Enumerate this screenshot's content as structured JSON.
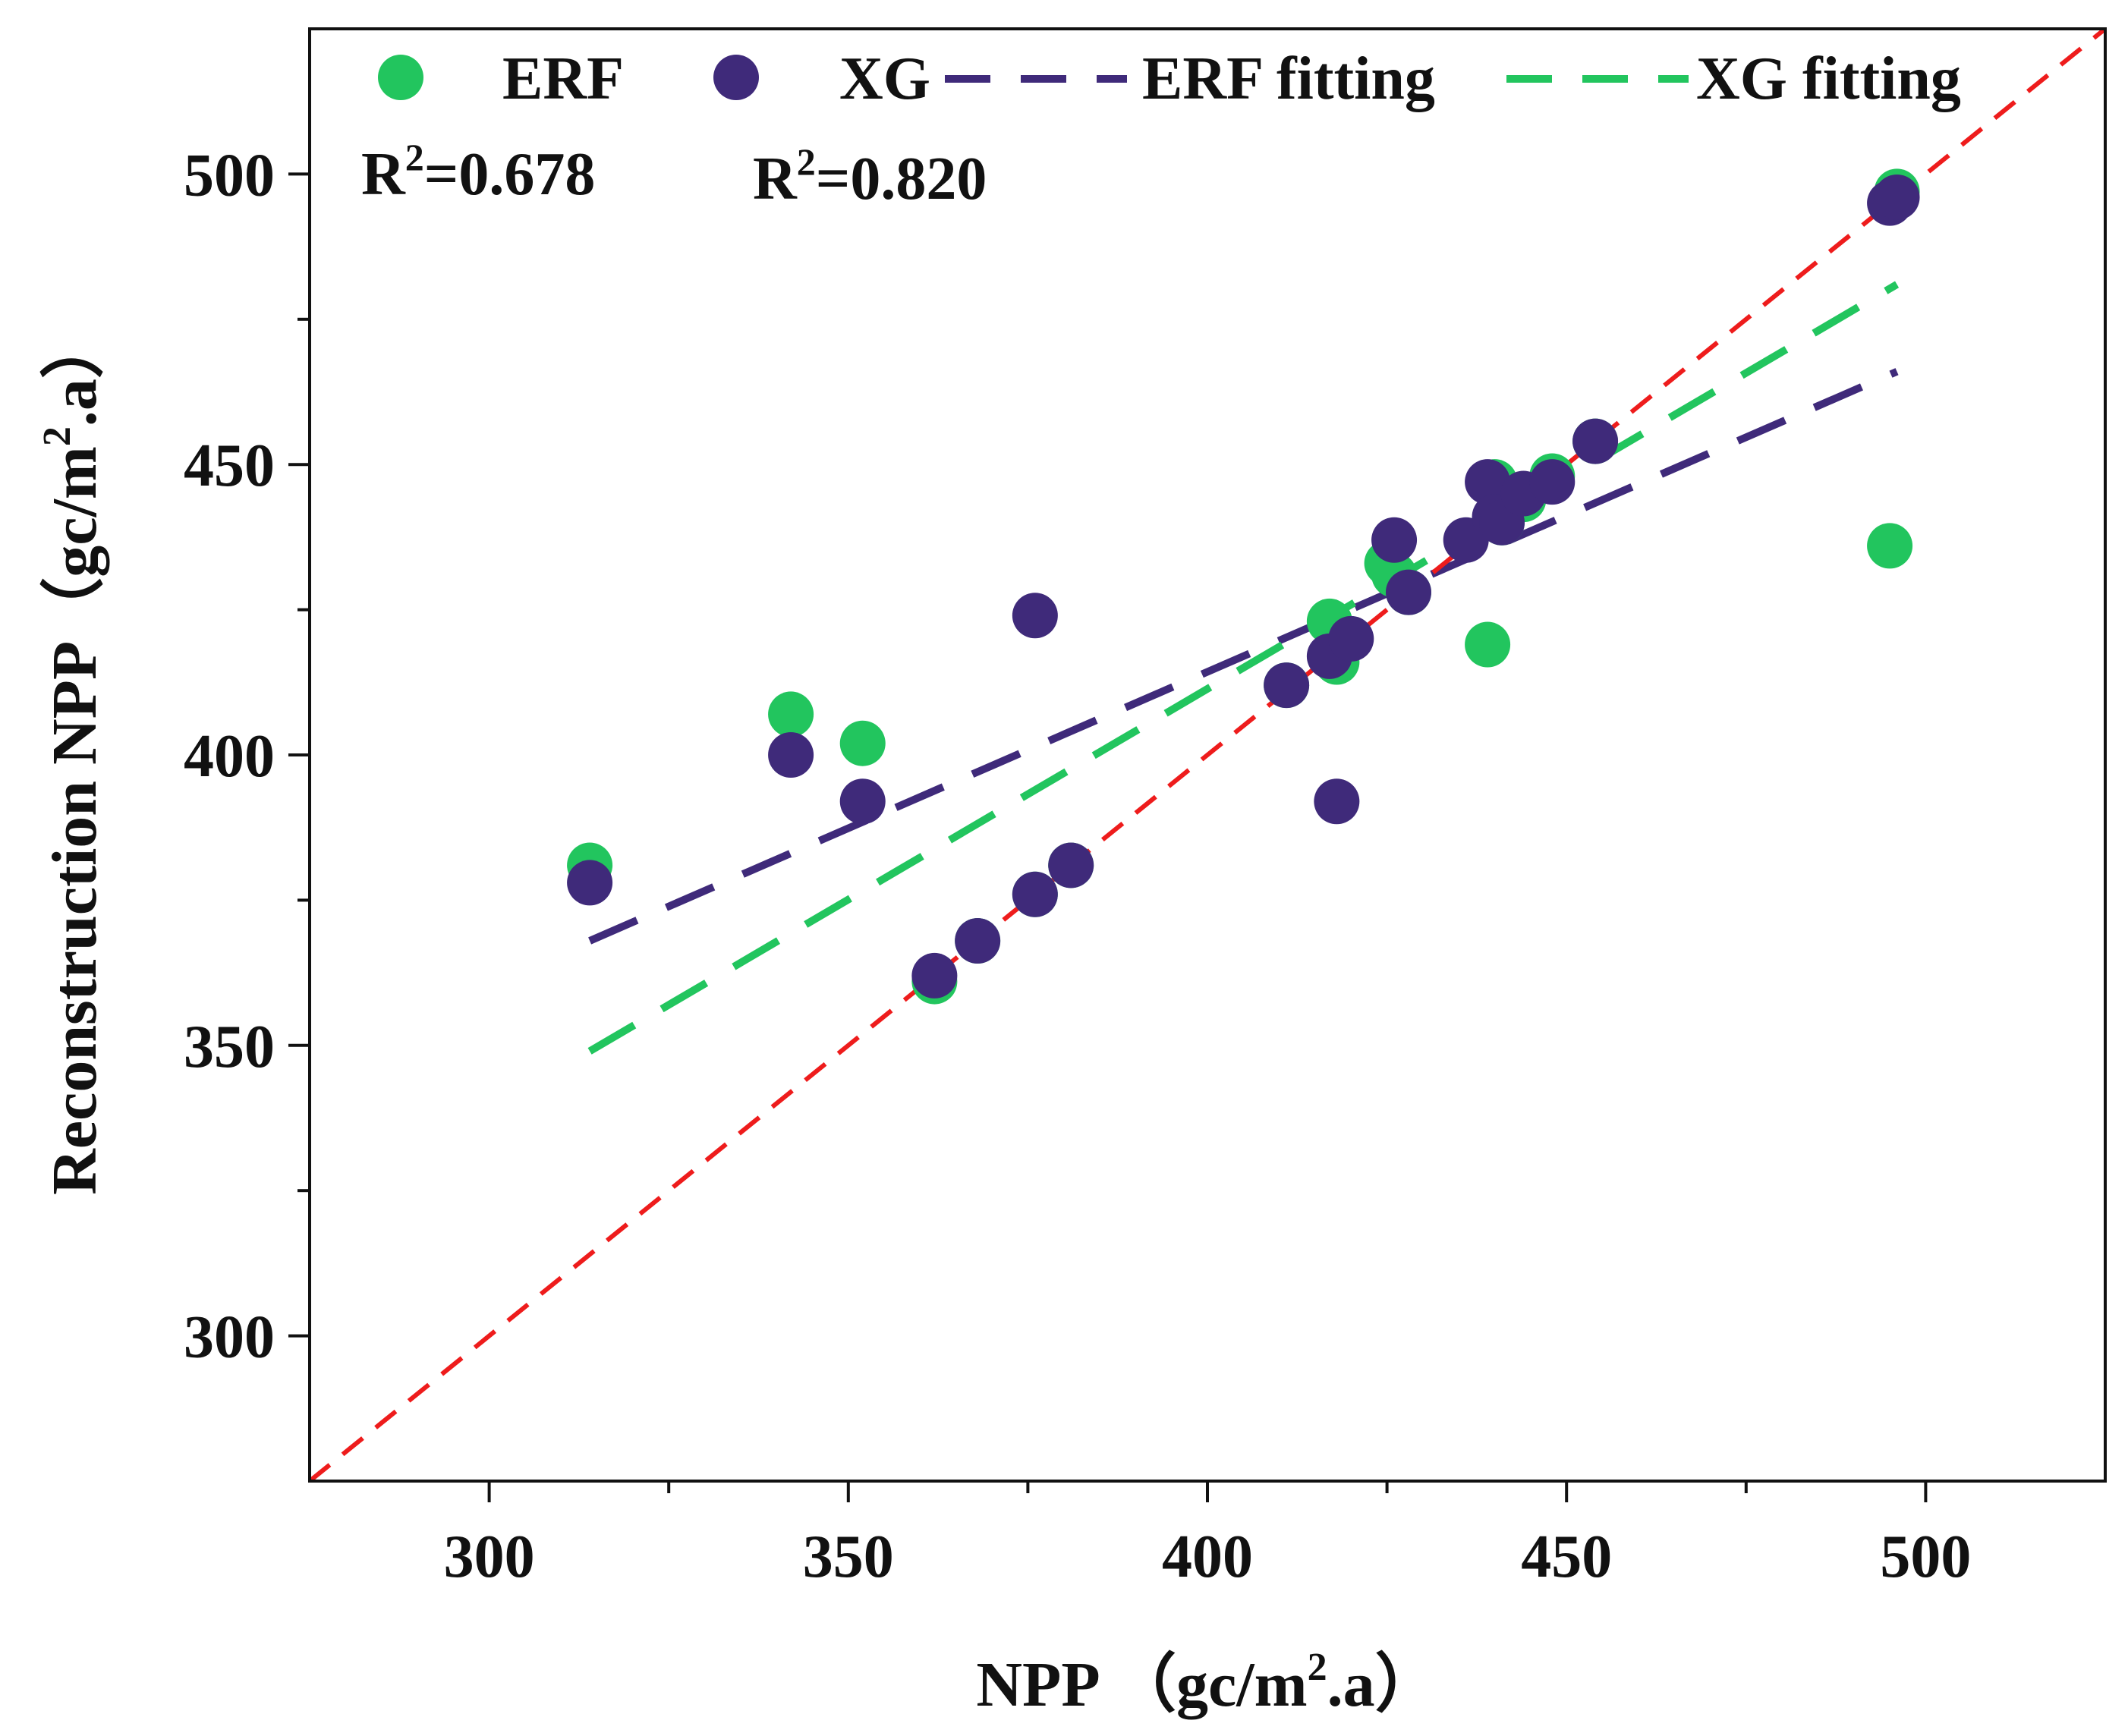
{
  "chart_data": {
    "type": "scatter",
    "xlabel": "NPP （gc/m².a）",
    "xlabel_parts": {
      "pre": "NPP （gc/m",
      "sup": "2",
      "post": ".a）"
    },
    "ylabel": "Reconstruction NPP（gc/m².a）",
    "ylabel_parts": {
      "pre": "Reconstruction NPP（gc/m",
      "sup": "2",
      "post": ".a）"
    },
    "xlim": [
      275,
      525
    ],
    "ylim": [
      275,
      525
    ],
    "x_ticks": [
      300,
      350,
      400,
      450,
      500
    ],
    "x_tick_labels": [
      "300",
      "350",
      "400",
      "450",
      "500"
    ],
    "x_minor_ticks": [
      325,
      375,
      425,
      475
    ],
    "y_ticks": [
      300,
      350,
      400,
      450,
      500
    ],
    "y_tick_labels": [
      "300",
      "350",
      "400",
      "450",
      "500"
    ],
    "y_minor_ticks": [
      325,
      375,
      425,
      475
    ],
    "grid": false,
    "legend_position": "top",
    "colors": {
      "erf": "#22c55e",
      "xg": "#3f2a7a",
      "erf_fit": "#3f2a7a",
      "xg_fit": "#22c55e",
      "identity": "#ee1c1c"
    },
    "series": [
      {
        "name": "ERF",
        "kind": "points",
        "x": [
          314,
          342,
          352,
          362,
          368,
          376,
          381,
          411,
          417,
          418,
          425,
          426,
          428,
          439,
          440,
          441,
          444,
          448,
          454,
          495,
          496
        ],
        "y": [
          381,
          407,
          402,
          361,
          368,
          376,
          381,
          412,
          423,
          416,
          433,
          431,
          428,
          419,
          447,
          440,
          444,
          448,
          454,
          436,
          497
        ]
      },
      {
        "name": "XG",
        "kind": "points",
        "x": [
          314,
          342,
          352,
          362,
          368,
          376,
          376,
          381,
          411,
          417,
          418,
          420,
          426,
          428,
          436,
          439,
          440,
          441,
          444,
          448,
          454,
          495,
          496
        ],
        "y": [
          378,
          400,
          392,
          362,
          368,
          376,
          424,
          381,
          412,
          417,
          392,
          420,
          437,
          428,
          437,
          447,
          441,
          440,
          445,
          447,
          454,
          495,
          496
        ]
      },
      {
        "name": "ERF fitting",
        "kind": "fit-line",
        "x": [
          314,
          496
        ],
        "y": [
          368,
          466
        ]
      },
      {
        "name": "XG fitting",
        "kind": "fit-line",
        "x": [
          314,
          496
        ],
        "y": [
          349,
          481
        ]
      },
      {
        "name": "",
        "kind": "identity-line",
        "x": [
          275,
          525
        ],
        "y": [
          275,
          525
        ]
      }
    ],
    "annotations": [
      {
        "pre": "R",
        "sup": "2",
        "post": "=0.678"
      },
      {
        "pre": "R",
        "sup": "2",
        "post": "=0.820"
      }
    ]
  }
}
